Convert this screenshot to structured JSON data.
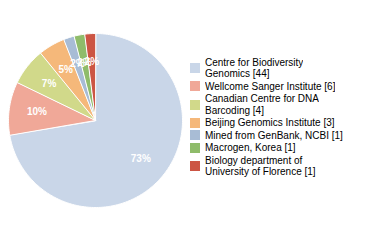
{
  "chart_data": {
    "type": "pie",
    "labels": [
      "Centre for Biodiversity\nGenomics [44]",
      "Wellcome Sanger Institute [6]",
      "Canadian Centre for DNA\nBarcoding [4]",
      "Beijing Genomics Institute [3]",
      "Mined from GenBank, NCBI [1]",
      "Macrogen, Korea [1]",
      "Biology department of\nUniversity of Florence [1]"
    ],
    "values": [
      73,
      10,
      7,
      5,
      2,
      2,
      2
    ],
    "value_labels": [
      "73%",
      "10%",
      "7%",
      "5%",
      "2%",
      "2%",
      "2%"
    ],
    "colors": [
      "#c9d6e8",
      "#f0a898",
      "#d1d98a",
      "#f5b87a",
      "#a8bcd5",
      "#8fbc6a",
      "#cc5544"
    ],
    "data_labels": true,
    "legend": "right"
  }
}
